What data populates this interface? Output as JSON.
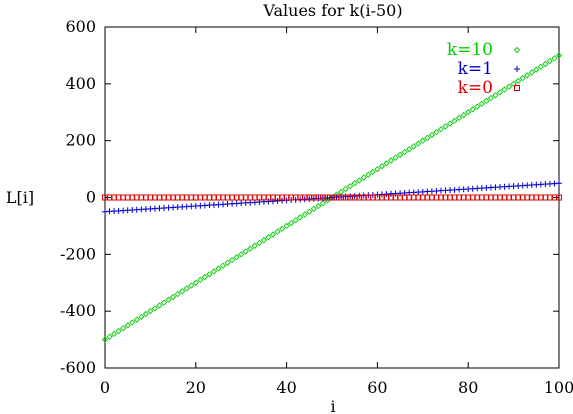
{
  "chart_data": {
    "type": "scatter",
    "title": "Values for k(i-50)",
    "xlabel": "i",
    "ylabel": "L[i]",
    "xlim": [
      0,
      100
    ],
    "ylim": [
      -600,
      600
    ],
    "x_ticks": [
      0,
      20,
      40,
      60,
      80,
      100
    ],
    "y_ticks": [
      -600,
      -400,
      -200,
      0,
      200,
      400,
      600
    ],
    "grid": false,
    "legend_position": "top-right",
    "x": {
      "start": 0,
      "end": 100,
      "step": 1
    },
    "series": [
      {
        "name": "k=10",
        "k": 10,
        "color": "#00cc00",
        "marker": "diamond",
        "formula": "k(i-50)"
      },
      {
        "name": "k=1",
        "k": 1,
        "color": "#0000cc",
        "marker": "plus",
        "formula": "k(i-50)"
      },
      {
        "name": "k=0",
        "k": 0,
        "color": "#dd0000",
        "marker": "square",
        "formula": "k(i-50)"
      }
    ]
  }
}
